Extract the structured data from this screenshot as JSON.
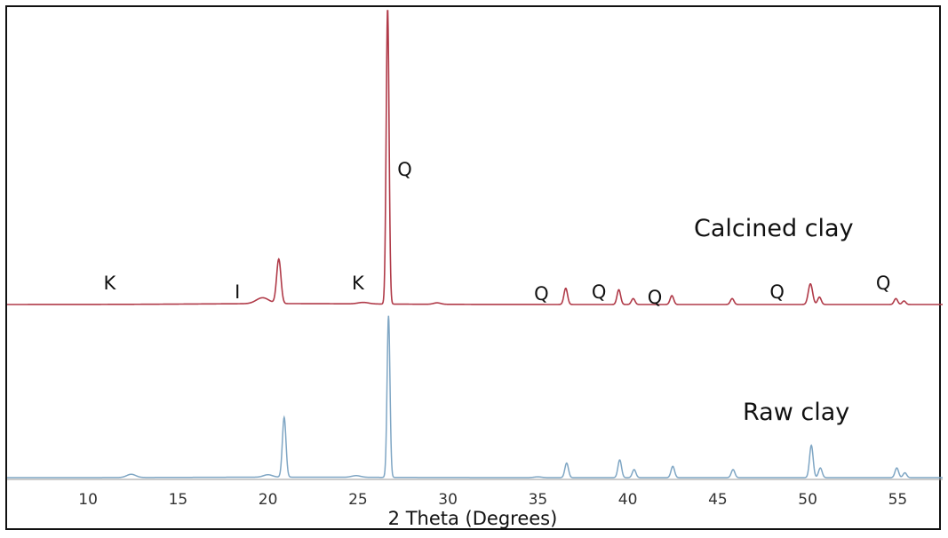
{
  "chart_data": {
    "type": "line",
    "xlabel": "2 Theta (Degrees)",
    "ylabel": "",
    "xlim": [
      5.5,
      57.5
    ],
    "x_ticks": [
      10,
      15,
      20,
      25,
      30,
      35,
      40,
      45,
      50,
      55
    ],
    "grid": false,
    "series": [
      {
        "name": "Calcined clay",
        "color": "#b03a48",
        "baseline": 0,
        "peaks": [
          {
            "x": 19.7,
            "h": 0.02,
            "w": 0.35
          },
          {
            "x": 20.6,
            "h": 0.15,
            "w": 0.12
          },
          {
            "x": 25.3,
            "h": 0.005,
            "w": 0.3
          },
          {
            "x": 26.65,
            "h": 1.0,
            "w": 0.08
          },
          {
            "x": 29.4,
            "h": 0.005,
            "w": 0.2
          },
          {
            "x": 36.55,
            "h": 0.055,
            "w": 0.1
          },
          {
            "x": 39.5,
            "h": 0.05,
            "w": 0.1
          },
          {
            "x": 40.3,
            "h": 0.02,
            "w": 0.1
          },
          {
            "x": 42.45,
            "h": 0.03,
            "w": 0.1
          },
          {
            "x": 45.8,
            "h": 0.02,
            "w": 0.1
          },
          {
            "x": 50.15,
            "h": 0.07,
            "w": 0.12
          },
          {
            "x": 50.65,
            "h": 0.025,
            "w": 0.1
          },
          {
            "x": 54.9,
            "h": 0.02,
            "w": 0.1
          },
          {
            "x": 55.35,
            "h": 0.012,
            "w": 0.1
          }
        ]
      },
      {
        "name": "Raw clay",
        "color": "#7fa6c4",
        "baseline": 0,
        "peaks": [
          {
            "x": 12.4,
            "h": 0.02,
            "w": 0.25
          },
          {
            "x": 20.0,
            "h": 0.015,
            "w": 0.25
          },
          {
            "x": 20.9,
            "h": 0.37,
            "w": 0.1
          },
          {
            "x": 24.9,
            "h": 0.01,
            "w": 0.25
          },
          {
            "x": 26.7,
            "h": 1.0,
            "w": 0.08
          },
          {
            "x": 35.0,
            "h": 0.005,
            "w": 0.2
          },
          {
            "x": 36.6,
            "h": 0.09,
            "w": 0.1
          },
          {
            "x": 39.55,
            "h": 0.11,
            "w": 0.1
          },
          {
            "x": 40.35,
            "h": 0.05,
            "w": 0.1
          },
          {
            "x": 42.5,
            "h": 0.07,
            "w": 0.1
          },
          {
            "x": 45.85,
            "h": 0.05,
            "w": 0.1
          },
          {
            "x": 50.2,
            "h": 0.2,
            "w": 0.1
          },
          {
            "x": 50.7,
            "h": 0.06,
            "w": 0.1
          },
          {
            "x": 54.95,
            "h": 0.06,
            "w": 0.1
          },
          {
            "x": 55.4,
            "h": 0.03,
            "w": 0.1
          }
        ]
      }
    ],
    "series_labels": [
      "Calcined clay",
      "Raw clay"
    ],
    "annotations": [
      {
        "text": "K",
        "x": 11.2
      },
      {
        "text": "I",
        "x": 18.3
      },
      {
        "text": "K",
        "x": 25.0
      },
      {
        "text": "Q",
        "x": 27.6
      },
      {
        "text": "Q",
        "x": 35.2
      },
      {
        "text": "Q",
        "x": 38.4
      },
      {
        "text": "Q",
        "x": 41.5
      },
      {
        "text": "Q",
        "x": 48.3
      },
      {
        "text": "Q",
        "x": 54.2
      }
    ]
  }
}
